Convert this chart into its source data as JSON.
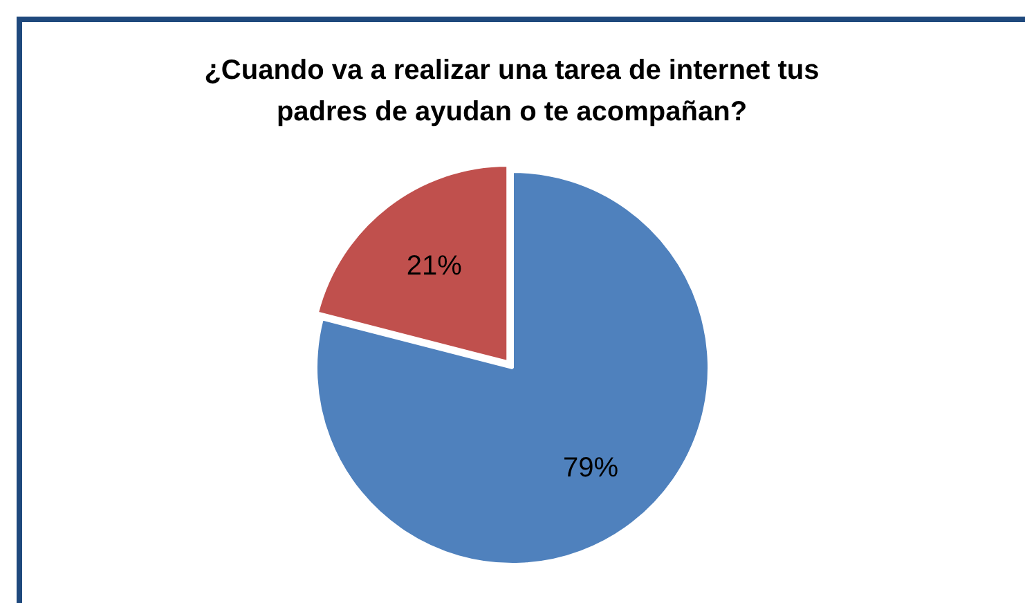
{
  "chart_data": {
    "type": "pie",
    "title": "¿Cuando va a realizar una tarea de internet tus padres de ayudan o te acompañan?",
    "categories": [
      null,
      null
    ],
    "values": [
      79,
      21
    ],
    "colors": [
      "#4f81bd",
      "#c0504d"
    ],
    "value_labels": [
      "79%",
      "21%"
    ],
    "legend": false
  }
}
